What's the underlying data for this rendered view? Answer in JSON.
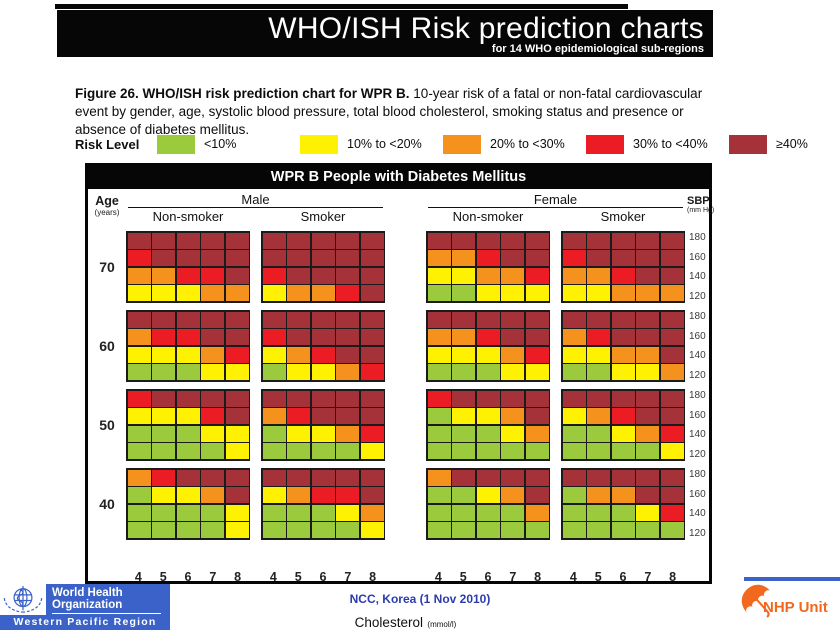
{
  "header": {
    "title": "WHO/ISH Risk prediction charts",
    "subtitle": "for 14 WHO epidemiological sub-regions"
  },
  "caption": {
    "bold": "Figure 26. WHO/ISH risk prediction chart for WPR B.",
    "text": " 10-year risk of a fatal or non-fatal cardiovascular event by gender, age, systolic blood pressure, total blood cholesterol, smoking status and presence or absence of diabetes mellitus."
  },
  "legend": {
    "label": "Risk Level",
    "items": [
      {
        "label": "<10%",
        "color": "#9cca3d"
      },
      {
        "label": "10% to <20%",
        "color": "#fef102"
      },
      {
        "label": "20% to <30%",
        "color": "#f5921e"
      },
      {
        "label": "30% to <40%",
        "color": "#ec1c24"
      },
      {
        "label": "≥40%",
        "color": "#a53238"
      }
    ]
  },
  "chart_data": {
    "type": "heatmap",
    "title": "WPR B People with Diabetes Mellitus",
    "row_axis": {
      "label": "Age",
      "unit": "(years)",
      "values": [
        70,
        60,
        50,
        40
      ]
    },
    "col_axis_right": {
      "label": "SBP",
      "unit": "(mm Hg)",
      "values": [
        180,
        160,
        140,
        120
      ]
    },
    "x_axis": {
      "label": "Cholesterol",
      "unit": "(mmol/l)",
      "values": [
        4,
        5,
        6,
        7,
        8
      ]
    },
    "group_headers": [
      "Male",
      "Female"
    ],
    "subgroup_headers": [
      "Non-smoker",
      "Smoker"
    ],
    "risk_levels": [
      {
        "code": "G",
        "label": "<10%",
        "color": "#9cca3d"
      },
      {
        "code": "Y",
        "label": "10% to <20%",
        "color": "#fef102"
      },
      {
        "code": "O",
        "label": "20% to <30%",
        "color": "#f5921e"
      },
      {
        "code": "R",
        "label": "30% to <40%",
        "color": "#ec1c24"
      },
      {
        "code": "D",
        "label": "≥40%",
        "color": "#a53238"
      }
    ],
    "grid_row_order_sbp": [
      180,
      160,
      140,
      120
    ],
    "grid_col_order_cholesterol": [
      4,
      5,
      6,
      7,
      8
    ],
    "blocks": [
      {
        "age": 70,
        "grids": [
          {
            "group": "male-nonsmoker",
            "rows": [
              "DDDDD",
              "RDDDD",
              "OORRD",
              "YYYOO"
            ]
          },
          {
            "group": "male-smoker",
            "rows": [
              "DDDDD",
              "DDDDD",
              "RDDDD",
              "YOORD"
            ]
          },
          {
            "group": "female-nonsmoker",
            "rows": [
              "DDDDD",
              "OORDD",
              "YYOOR",
              "GGYYY"
            ]
          },
          {
            "group": "female-smoker",
            "rows": [
              "DDDDD",
              "RDDDD",
              "OORDD",
              "YYOOO"
            ]
          }
        ]
      },
      {
        "age": 60,
        "grids": [
          {
            "group": "male-nonsmoker",
            "rows": [
              "DDDDD",
              "ORRDD",
              "YYYOR",
              "GGGYY"
            ]
          },
          {
            "group": "male-smoker",
            "rows": [
              "DDDDD",
              "RDDDD",
              "YORDD",
              "GYYOR"
            ]
          },
          {
            "group": "female-nonsmoker",
            "rows": [
              "DDDDD",
              "OORDD",
              "YYYOR",
              "GGGYY"
            ]
          },
          {
            "group": "female-smoker",
            "rows": [
              "DDDDD",
              "ORDDD",
              "YYOOD",
              "GGYYO"
            ]
          }
        ]
      },
      {
        "age": 50,
        "grids": [
          {
            "group": "male-nonsmoker",
            "rows": [
              "RDDDD",
              "YYYRD",
              "GGGYY",
              "GGGGY"
            ]
          },
          {
            "group": "male-smoker",
            "rows": [
              "DDDDD",
              "ORDDD",
              "GYYOR",
              "GGGGY"
            ]
          },
          {
            "group": "female-nonsmoker",
            "rows": [
              "RDDDD",
              "GYYOD",
              "GGGYO",
              "GGGGG"
            ]
          },
          {
            "group": "female-smoker",
            "rows": [
              "DDDDD",
              "YORDD",
              "GGYOR",
              "GGGGY"
            ]
          }
        ]
      },
      {
        "age": 40,
        "grids": [
          {
            "group": "male-nonsmoker",
            "rows": [
              "ORDDD",
              "GYYOD",
              "GGGGY",
              "GGGGY"
            ]
          },
          {
            "group": "male-smoker",
            "rows": [
              "DDDDD",
              "YORRD",
              "GGGYO",
              "GGGGY"
            ]
          },
          {
            "group": "female-nonsmoker",
            "rows": [
              "ODDDD",
              "GGYOD",
              "GGGGO",
              "GGGGG"
            ]
          },
          {
            "group": "female-smoker",
            "rows": [
              "DDDDD",
              "GOODD",
              "GGGYR",
              "GGGGG"
            ]
          }
        ]
      }
    ]
  },
  "footer": {
    "who_logo": {
      "line1": "World Health",
      "line2": "Organization",
      "line3": "Western Pacific Region"
    },
    "center_text": "NCC, Korea (1 Nov 2010)",
    "nhp_label": "NHP Unit"
  },
  "colors": {
    "who_blue": "#3a62c8",
    "ncc_blue": "#2b3cad",
    "nhp_orange": "#f2681c",
    "banner_black": "#060606"
  }
}
